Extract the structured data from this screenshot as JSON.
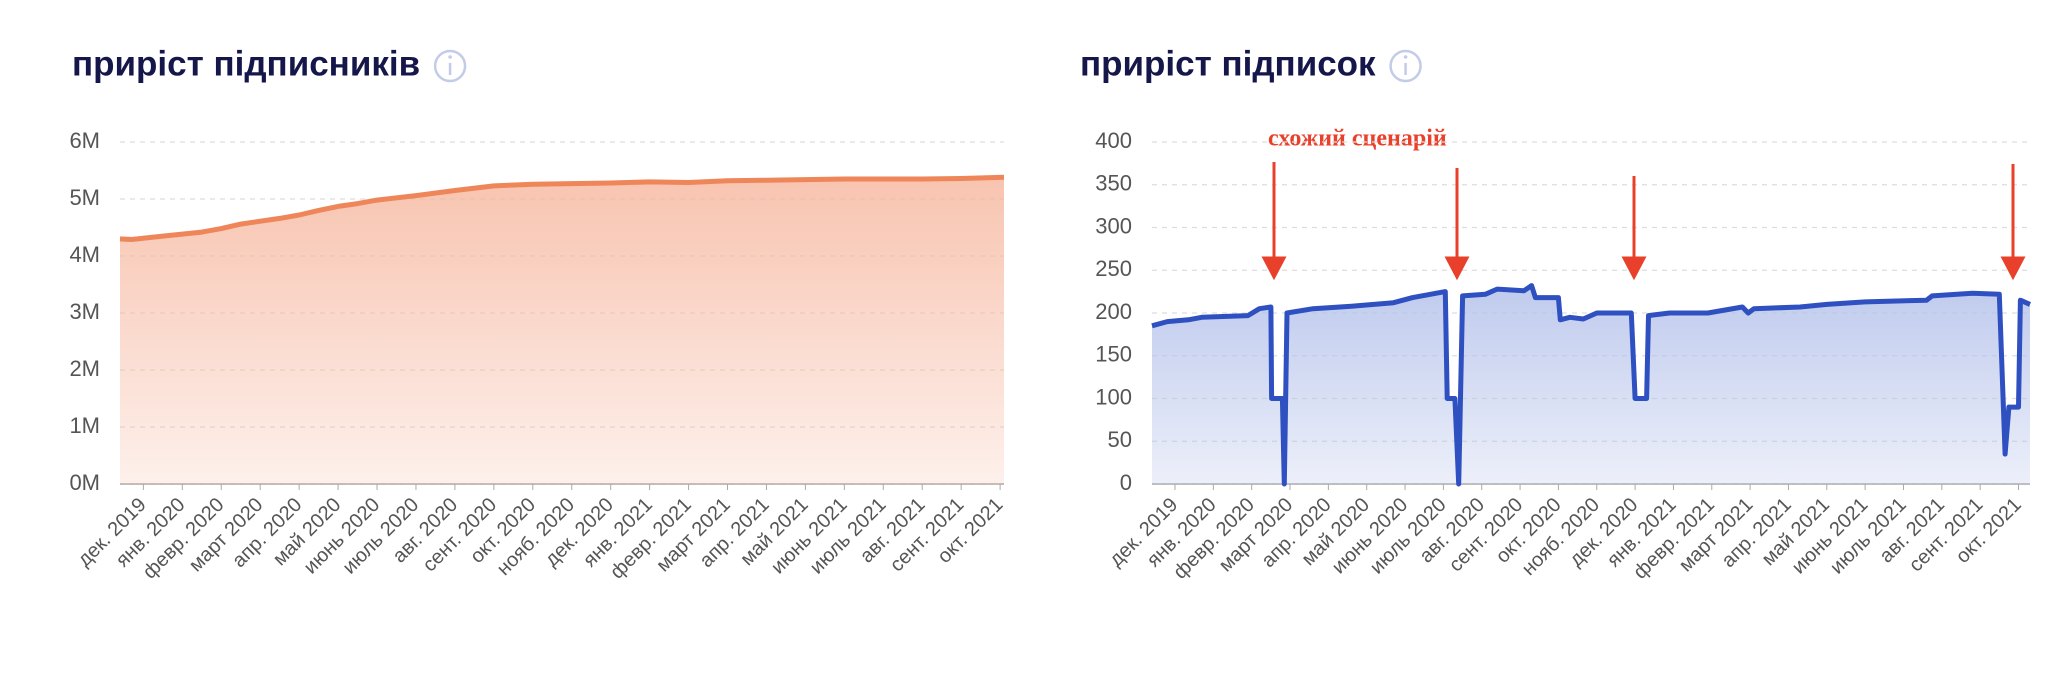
{
  "chart_data": [
    {
      "type": "line",
      "title": "приріст підписників",
      "color": "#ee8659",
      "fill": "#f6b59c",
      "xlim": [
        -0.6,
        22.1
      ],
      "xticks": [
        {
          "value": 0,
          "label": "дек. 2019"
        },
        {
          "value": 1,
          "label": "янв. 2020"
        },
        {
          "value": 2,
          "label": "февр. 2020"
        },
        {
          "value": 3,
          "label": "март 2020"
        },
        {
          "value": 4,
          "label": "апр. 2020"
        },
        {
          "value": 5,
          "label": "май 2020"
        },
        {
          "value": 6,
          "label": "июнь 2020"
        },
        {
          "value": 7,
          "label": "июль 2020"
        },
        {
          "value": 8,
          "label": "авг. 2020"
        },
        {
          "value": 9,
          "label": "сент. 2020"
        },
        {
          "value": 10,
          "label": "окт. 2020"
        },
        {
          "value": 11,
          "label": "нояб. 2020"
        },
        {
          "value": 12,
          "label": "дек. 2020"
        },
        {
          "value": 13,
          "label": "янв. 2021"
        },
        {
          "value": 14,
          "label": "февр. 2021"
        },
        {
          "value": 15,
          "label": "март 2021"
        },
        {
          "value": 16,
          "label": "апр. 2021"
        },
        {
          "value": 17,
          "label": "май 2021"
        },
        {
          "value": 18,
          "label": "июнь 2021"
        },
        {
          "value": 19,
          "label": "июль 2021"
        },
        {
          "value": 20,
          "label": "авг. 2021"
        },
        {
          "value": 21,
          "label": "сент. 2021"
        },
        {
          "value": 22,
          "label": "окт. 2021"
        }
      ],
      "ylim": [
        0,
        6000000
      ],
      "yticks": [
        {
          "value": 0,
          "label": "0M"
        },
        {
          "value": 1000000,
          "label": "1M"
        },
        {
          "value": 2000000,
          "label": "2M"
        },
        {
          "value": 3000000,
          "label": "3M"
        },
        {
          "value": 4000000,
          "label": "4M"
        },
        {
          "value": 5000000,
          "label": "5M"
        },
        {
          "value": 6000000,
          "label": "6M"
        }
      ],
      "grid": true,
      "x": [
        -0.6,
        -0.3,
        0.5,
        1.5,
        2.0,
        2.5,
        3.5,
        4.0,
        4.5,
        5.0,
        5.5,
        6.0,
        7.0,
        8.0,
        9.0,
        10.0,
        11.0,
        12.0,
        13.0,
        14.0,
        15.0,
        16.0,
        17.0,
        18.0,
        19.0,
        20.0,
        21.0,
        22.1
      ],
      "values": [
        4300000,
        4290000,
        4350000,
        4420000,
        4480000,
        4560000,
        4660000,
        4720000,
        4800000,
        4870000,
        4920000,
        4980000,
        5060000,
        5150000,
        5230000,
        5260000,
        5270000,
        5280000,
        5300000,
        5290000,
        5320000,
        5330000,
        5340000,
        5350000,
        5350000,
        5350000,
        5360000,
        5380000
      ]
    },
    {
      "type": "line",
      "title": "приріст підписок",
      "color": "#2f50c0",
      "fill": "#b4c1ea",
      "annotation": "схожий сценарій",
      "xlim": [
        -0.6,
        22.3
      ],
      "xticks": [
        {
          "value": 0,
          "label": "дек. 2019"
        },
        {
          "value": 1,
          "label": "янв. 2020"
        },
        {
          "value": 2,
          "label": "февр. 2020"
        },
        {
          "value": 3,
          "label": "март 2020"
        },
        {
          "value": 4,
          "label": "апр. 2020"
        },
        {
          "value": 5,
          "label": "май 2020"
        },
        {
          "value": 6,
          "label": "июнь 2020"
        },
        {
          "value": 7,
          "label": "июль 2020"
        },
        {
          "value": 8,
          "label": "авг. 2020"
        },
        {
          "value": 9,
          "label": "сент. 2020"
        },
        {
          "value": 10,
          "label": "окт. 2020"
        },
        {
          "value": 11,
          "label": "нояб. 2020"
        },
        {
          "value": 12,
          "label": "дек. 2020"
        },
        {
          "value": 13,
          "label": "янв. 2021"
        },
        {
          "value": 14,
          "label": "февр. 2021"
        },
        {
          "value": 15,
          "label": "март 2021"
        },
        {
          "value": 16,
          "label": "апр. 2021"
        },
        {
          "value": 17,
          "label": "май 2021"
        },
        {
          "value": 18,
          "label": "июнь 2021"
        },
        {
          "value": 19,
          "label": "июль 2021"
        },
        {
          "value": 20,
          "label": "авг. 2021"
        },
        {
          "value": 21,
          "label": "сент. 2021"
        },
        {
          "value": 22,
          "label": "окт. 2021"
        }
      ],
      "ylim": [
        0,
        400
      ],
      "yticks": [
        0,
        50,
        100,
        150,
        200,
        250,
        300,
        350,
        400
      ],
      "grid": true,
      "x": [
        -0.6,
        -0.2,
        0.35,
        0.7,
        1.9,
        2.2,
        2.5,
        2.52,
        2.8,
        2.85,
        2.92,
        3.6,
        4.6,
        5.7,
        6.2,
        7.05,
        7.1,
        7.3,
        7.4,
        7.5,
        8.1,
        8.4,
        9.1,
        9.3,
        9.4,
        10.0,
        10.05,
        10.3,
        10.65,
        11.0,
        11.9,
        12.0,
        12.3,
        12.35,
        12.9,
        13.9,
        14.8,
        14.95,
        15.1,
        16.3,
        17.0,
        18.0,
        19.6,
        19.75,
        20.8,
        21.5,
        21.65,
        21.75,
        22.0,
        22.05,
        22.3
      ],
      "values": [
        185,
        190,
        192,
        195,
        197,
        205,
        207,
        100,
        100,
        0,
        200,
        205,
        208,
        212,
        218,
        225,
        100,
        100,
        0,
        220,
        222,
        228,
        226,
        232,
        218,
        218,
        192,
        195,
        193,
        200,
        200,
        100,
        100,
        197,
        200,
        200,
        207,
        200,
        205,
        207,
        210,
        213,
        215,
        220,
        223,
        222,
        35,
        90,
        90,
        215,
        210
      ]
    }
  ]
}
